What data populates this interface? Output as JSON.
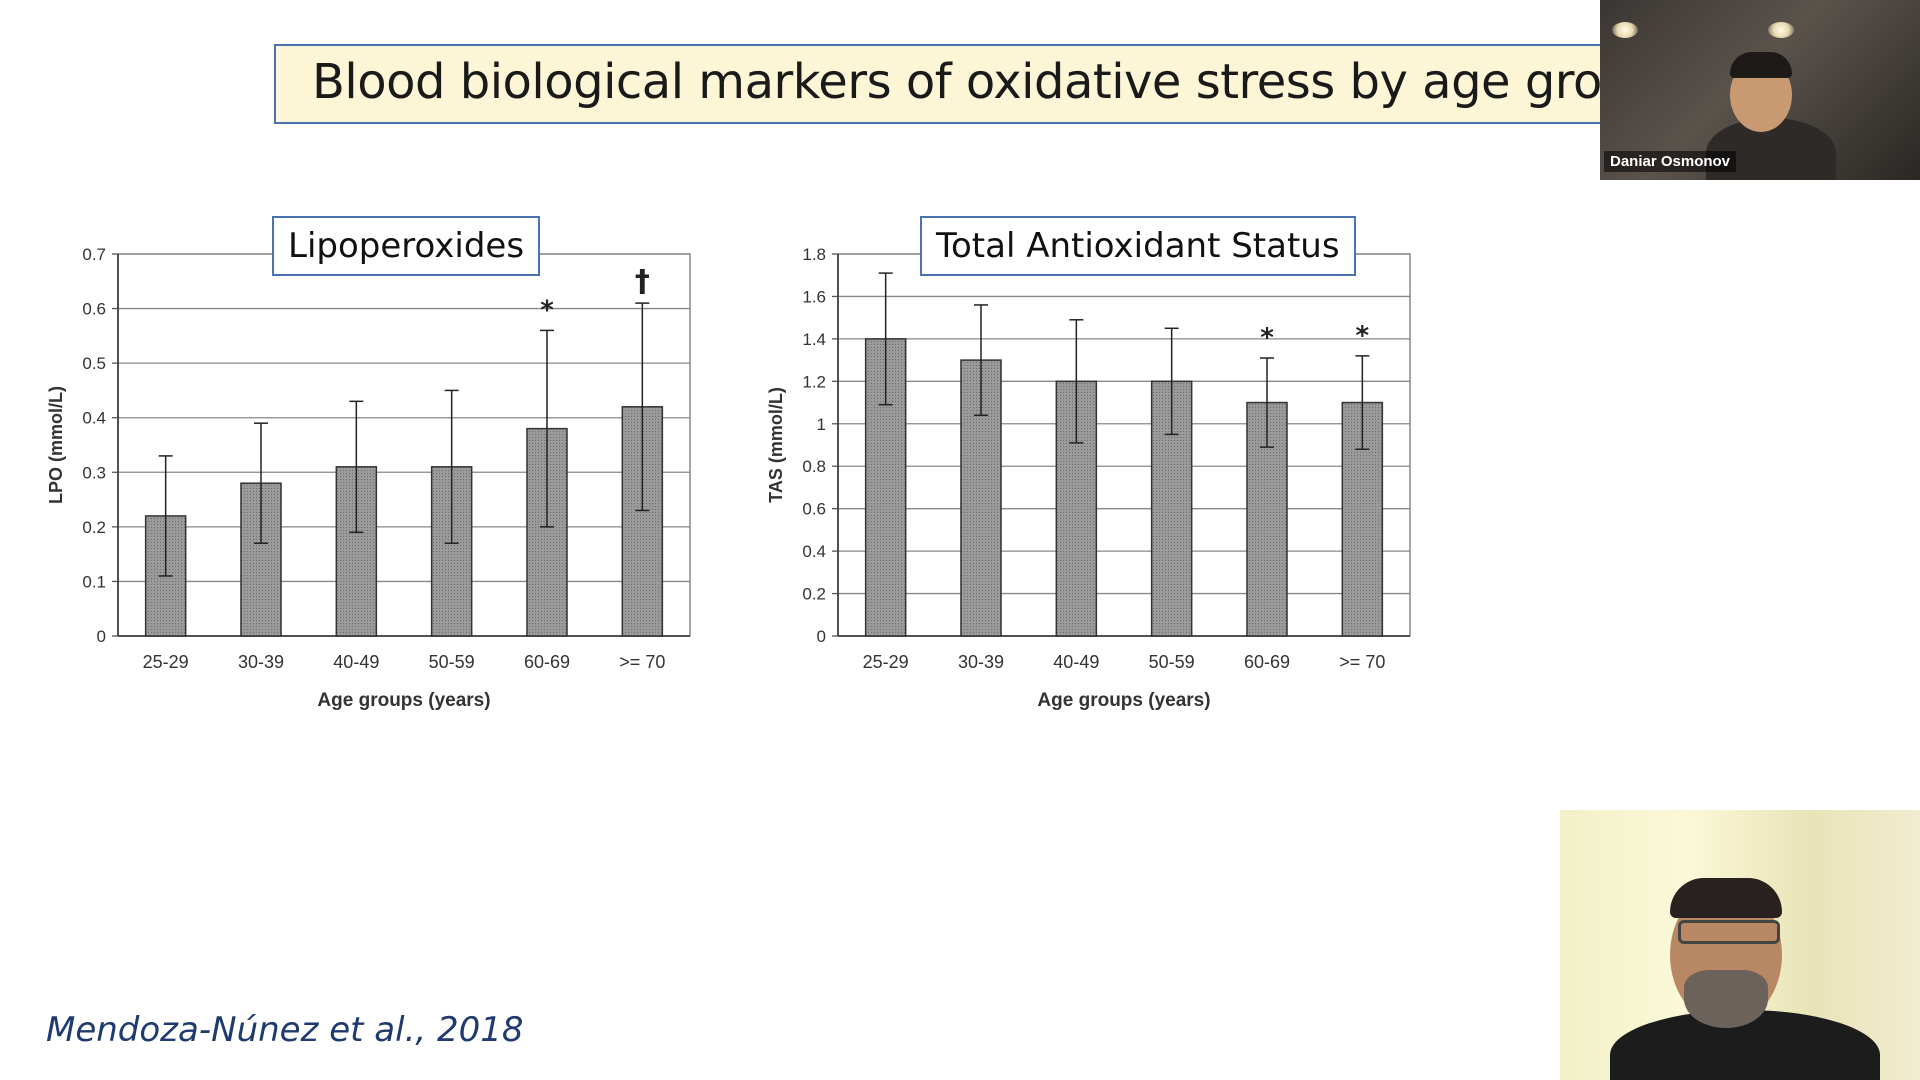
{
  "slide": {
    "title": "Blood biological markers of oxidative stress by age groups",
    "citation": "Mendoza-Núnez et al., 2018"
  },
  "participants": {
    "top_name": "Daniar Osmonov"
  },
  "chart_data": [
    {
      "type": "bar",
      "title": "Lipoperoxides",
      "xlabel": "Age groups (years)",
      "ylabel": "LPO (mmol/L)",
      "categories": [
        "25-29",
        "30-39",
        "40-49",
        "50-59",
        "60-69",
        ">= 70"
      ],
      "values": [
        0.22,
        0.28,
        0.31,
        0.31,
        0.38,
        0.42
      ],
      "error": [
        0.11,
        0.11,
        0.12,
        0.14,
        0.18,
        0.19
      ],
      "annotations": [
        "",
        "",
        "",
        "",
        "*",
        "†"
      ],
      "ylim": [
        0,
        0.7
      ],
      "yticks": [
        "0",
        "0.1",
        "0.2",
        "0.3",
        "0.4",
        "0.5",
        "0.6",
        "0.7"
      ],
      "grid": true,
      "bar_color": "#9a9a9a"
    },
    {
      "type": "bar",
      "title": "Total Antioxidant Status",
      "xlabel": "Age groups (years)",
      "ylabel": "TAS (mmol/L)",
      "categories": [
        "25-29",
        "30-39",
        "40-49",
        "50-59",
        "60-69",
        ">= 70"
      ],
      "values": [
        1.4,
        1.3,
        1.2,
        1.2,
        1.1,
        1.1
      ],
      "error": [
        0.31,
        0.26,
        0.29,
        0.25,
        0.21,
        0.22
      ],
      "annotations": [
        "",
        "",
        "",
        "",
        "*",
        "*"
      ],
      "ylim": [
        0,
        1.8
      ],
      "yticks": [
        "0",
        "0.2",
        "0.4",
        "0.6",
        "0.8",
        "1",
        "1.2",
        "1.4",
        "1.6",
        "1.8"
      ],
      "grid": true,
      "bar_color": "#9a9a9a"
    }
  ]
}
